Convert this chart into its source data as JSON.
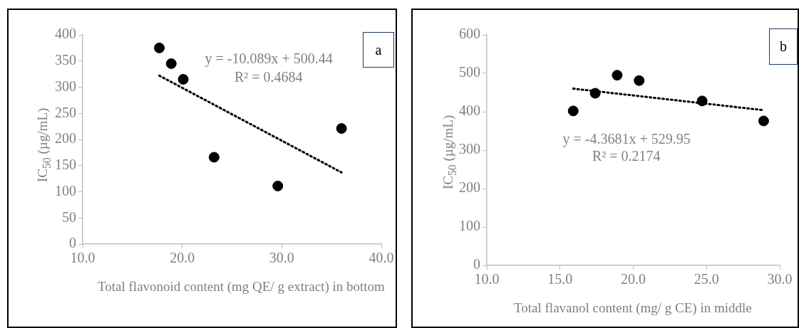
{
  "chart_data": [
    {
      "type": "scatter",
      "xlabel": "Total flavonoid content (mg QE/ g extract) in bottom",
      "ylabel": "IC$_{50}$ (µg/mL)",
      "xlim": [
        10,
        40
      ],
      "xticks": [
        {
          "value": 10,
          "label": "10.0"
        },
        {
          "value": 20,
          "label": "20.0"
        },
        {
          "value": 30,
          "label": "30.0"
        },
        {
          "value": 40,
          "label": "40.0"
        }
      ],
      "ylim": [
        0,
        400
      ],
      "yticks": [
        0,
        50,
        100,
        150,
        200,
        250,
        300,
        350,
        400
      ],
      "grid": false,
      "legend": false,
      "marker": "circle",
      "series": [
        {
          "type": "scatter",
          "color": "#000000",
          "x": [
            17.7,
            18.9,
            20.1,
            23.2,
            29.6,
            36.0
          ],
          "values": [
            375,
            345,
            315,
            166,
            111,
            221
          ]
        },
        {
          "type": "line",
          "color": "#000000",
          "line_style": "dotted",
          "marker": "none",
          "x": [
            17.7,
            36.0
          ],
          "values": [
            322,
            137
          ]
        }
      ],
      "annotations": [
        "y = -10.089x + 500.44",
        "R² = 0.4684",
        "a"
      ]
    },
    {
      "type": "scatter",
      "xlabel": "Total flavanol content (mg/ g CE) in middle",
      "ylabel": "IC$_{50}$ (µg/mL)",
      "xlim": [
        10,
        30
      ],
      "xticks": [
        {
          "value": 10,
          "label": "10.0"
        },
        {
          "value": 15,
          "label": "15.0"
        },
        {
          "value": 20,
          "label": "20.0"
        },
        {
          "value": 25,
          "label": "25.0"
        },
        {
          "value": 30,
          "label": "30.0"
        }
      ],
      "ylim": [
        0,
        600
      ],
      "yticks": [
        0,
        100,
        200,
        300,
        400,
        500,
        600
      ],
      "grid": false,
      "legend": false,
      "marker": "circle",
      "series": [
        {
          "type": "scatter",
          "color": "#000000",
          "x": [
            15.9,
            17.4,
            18.9,
            20.4,
            24.7,
            28.9
          ],
          "values": [
            402,
            448,
            495,
            481,
            428,
            376
          ]
        },
        {
          "type": "line",
          "color": "#000000",
          "line_style": "dotted",
          "marker": "none",
          "x": [
            15.9,
            28.9
          ],
          "values": [
            460,
            404
          ]
        }
      ],
      "annotations": [
        "y = -4.3681x + 529.95",
        "R² = 0.2174",
        "b"
      ]
    }
  ]
}
